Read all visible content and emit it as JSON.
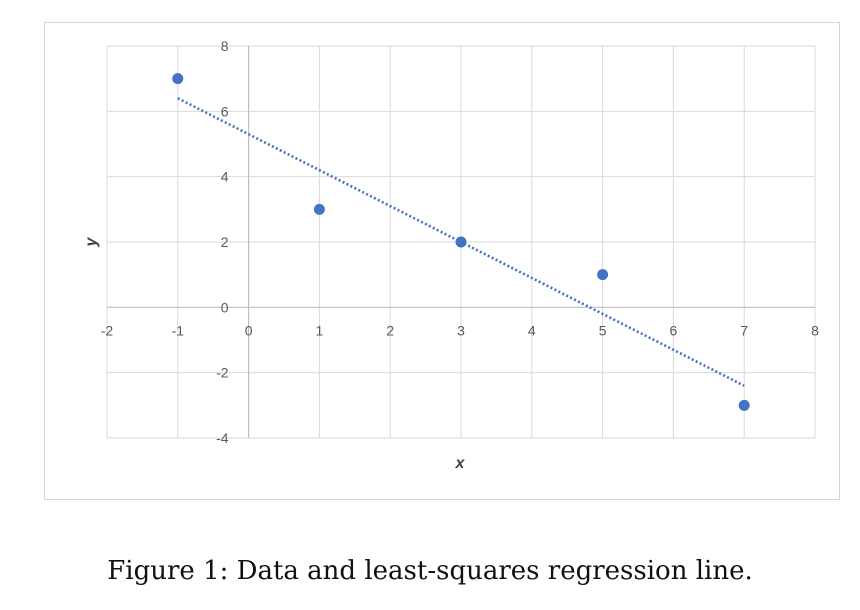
{
  "caption": "Figure 1: Data and least-squares regression line.",
  "chart_data": {
    "type": "scatter",
    "title": "",
    "xlabel": "x",
    "ylabel": "y",
    "xlim": [
      -2,
      8
    ],
    "ylim": [
      -4,
      8
    ],
    "x_ticks": [
      -2,
      -1,
      0,
      1,
      2,
      3,
      4,
      5,
      6,
      7,
      8
    ],
    "y_ticks": [
      -4,
      -2,
      0,
      2,
      4,
      6,
      8
    ],
    "grid": true,
    "series": [
      {
        "x": [
          -1,
          1,
          3,
          5,
          7
        ],
        "y": [
          7,
          3,
          2,
          1,
          -3
        ],
        "color": "#4472C4"
      }
    ],
    "trendline": {
      "type": "linear",
      "x": [
        -1,
        7
      ],
      "y": [
        6.4,
        -2.4
      ],
      "color": "#4472C4",
      "style": "dotted"
    }
  }
}
